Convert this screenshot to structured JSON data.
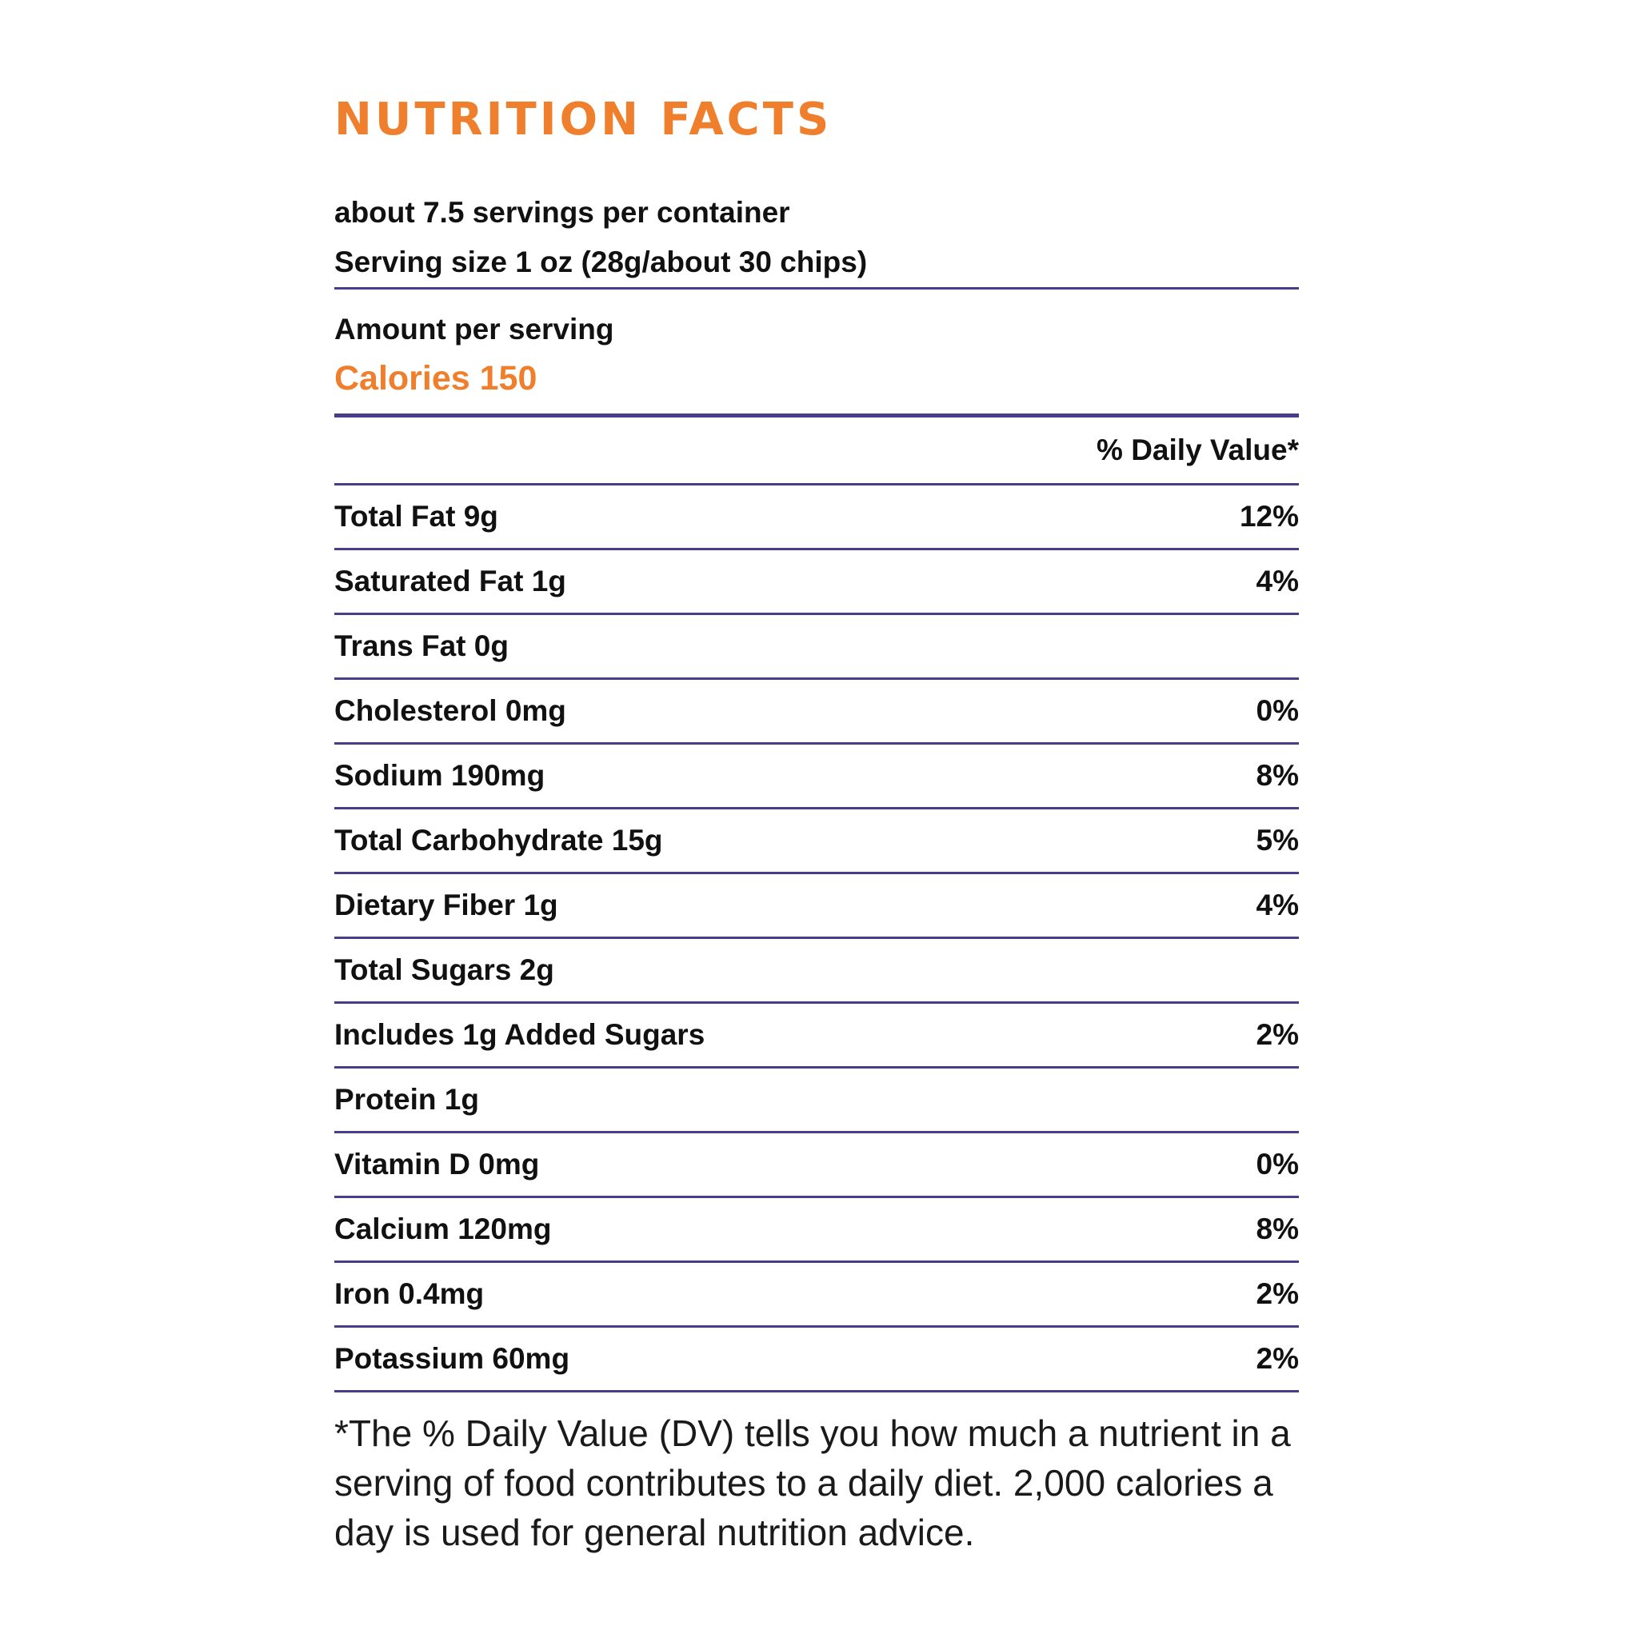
{
  "label": {
    "title": "NUTRITION FACTS",
    "servings_per_container": "about 7.5 servings per container",
    "serving_size": "Serving size 1 oz (28g/about 30 chips)",
    "amount_per_serving": "Amount per serving",
    "calories": "Calories 150",
    "dv_header": "% Daily Value*",
    "nutrients": [
      {
        "name": "Total Fat 9g",
        "dv": "12%"
      },
      {
        "name": "Saturated Fat 1g",
        "dv": "4%"
      },
      {
        "name": "Trans Fat 0g",
        "dv": ""
      },
      {
        "name": "Cholesterol 0mg",
        "dv": "0%"
      },
      {
        "name": "Sodium 190mg",
        "dv": "8%"
      },
      {
        "name": "Total Carbohydrate 15g",
        "dv": "5%"
      },
      {
        "name": "Dietary Fiber 1g",
        "dv": "4%"
      },
      {
        "name": "Total Sugars 2g",
        "dv": ""
      },
      {
        "name": "Includes 1g Added Sugars",
        "dv": "2%"
      },
      {
        "name": "Protein 1g",
        "dv": ""
      },
      {
        "name": "Vitamin D 0mg",
        "dv": "0%"
      },
      {
        "name": "Calcium 120mg",
        "dv": "8%"
      },
      {
        "name": "Iron 0.4mg",
        "dv": "2%"
      },
      {
        "name": "Potassium 60mg",
        "dv": "2%"
      }
    ],
    "footnote": "*The % Daily Value (DV) tells you how much a nutrient in a serving of food contributes to a daily diet. 2,000 calories a day is used for general nutrition advice."
  },
  "colors": {
    "accent": "#ef7f2d",
    "rule": "#4b3c8a",
    "text": "#111111"
  }
}
